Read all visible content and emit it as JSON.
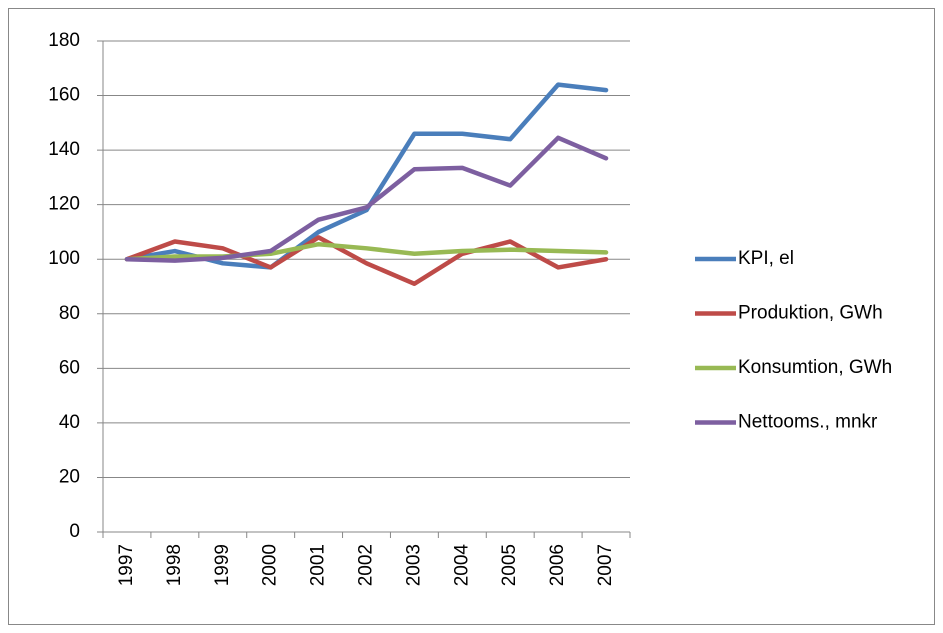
{
  "chart_data": {
    "type": "line",
    "categories": [
      "1997",
      "1998",
      "1999",
      "2000",
      "2001",
      "2002",
      "2003",
      "2004",
      "2005",
      "2006",
      "2007"
    ],
    "series": [
      {
        "name": "KPI, el",
        "color": "#4a7ebb",
        "values": [
          100,
          103,
          98.5,
          97,
          110,
          118,
          146,
          146,
          144,
          164,
          162
        ]
      },
      {
        "name": "Produktion, GWh",
        "color": "#be4b48",
        "values": [
          100,
          106.5,
          104,
          97,
          108,
          98.5,
          91,
          102,
          106.5,
          97,
          100
        ]
      },
      {
        "name": "Konsumtion, GWh",
        "color": "#98b954",
        "values": [
          100,
          101,
          101,
          102,
          105.5,
          104,
          102,
          103,
          103.5,
          103,
          102.5
        ]
      },
      {
        "name": "Nettooms., mnkr",
        "color": "#7d5fa0",
        "values": [
          100,
          99.5,
          100.5,
          103,
          114.5,
          119,
          133,
          133.5,
          127,
          144.5,
          137
        ]
      }
    ],
    "ylim": [
      0,
      180
    ],
    "yticks": [
      0,
      20,
      40,
      60,
      80,
      100,
      120,
      140,
      160,
      180
    ],
    "grid": true,
    "legend": "right"
  }
}
